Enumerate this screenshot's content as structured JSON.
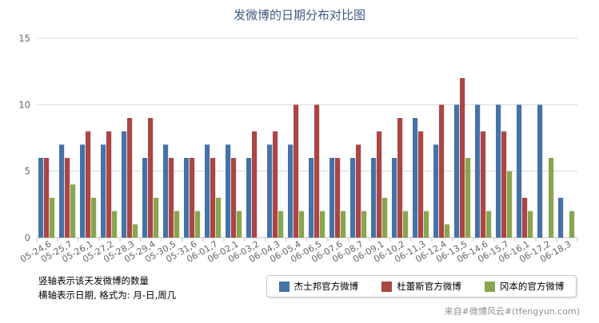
{
  "title": "发微博的日期分布对比图",
  "notes": {
    "line1": "竖轴表示该天发微博的数量",
    "line2": "横轴表示日期, 格式为: 月-日,周几"
  },
  "credit": "来自#微博风云#(tfengyun.com)",
  "chart_data": {
    "type": "bar",
    "title": "发微博的日期分布对比图",
    "ylim": [
      0,
      15
    ],
    "yticks": [
      0,
      5,
      10,
      15
    ],
    "grid": true,
    "legend_position": "bottom-right",
    "categories": [
      "05-24,6",
      "05-25,7",
      "05-26,1",
      "05-27,2",
      "05-28,3",
      "05-29,4",
      "05-30,5",
      "05-31,6",
      "06-01,7",
      "06-02,1",
      "06-03,2",
      "06-04,3",
      "06-05,4",
      "06-06,5",
      "06-07,6",
      "06-08,7",
      "06-09,1",
      "06-10,2",
      "06-11,3",
      "06-12,4",
      "06-13,5",
      "06-14,6",
      "06-15,7",
      "06-16,1",
      "06-17,2",
      "06-18,3"
    ],
    "series": [
      {
        "name": "杰士邦官方微博",
        "color": "#4572a7",
        "values": [
          6,
          7,
          7,
          7,
          8,
          6,
          7,
          6,
          7,
          7,
          6,
          7,
          7,
          6,
          6,
          6,
          6,
          6,
          9,
          7,
          10,
          10,
          10,
          10,
          10,
          3
        ]
      },
      {
        "name": "杜蕾斯官方微博",
        "color": "#aa4643",
        "values": [
          6,
          6,
          8,
          8,
          9,
          9,
          6,
          6,
          6,
          6,
          8,
          8,
          10,
          10,
          6,
          7,
          8,
          9,
          8,
          10,
          12,
          8,
          8,
          3,
          0,
          0
        ]
      },
      {
        "name": "冈本的官方微博",
        "color": "#89a54e",
        "values": [
          3,
          4,
          3,
          2,
          1,
          3,
          2,
          2,
          3,
          2,
          0,
          2,
          2,
          2,
          2,
          2,
          3,
          2,
          2,
          1,
          6,
          2,
          5,
          2,
          6,
          2
        ]
      }
    ]
  }
}
